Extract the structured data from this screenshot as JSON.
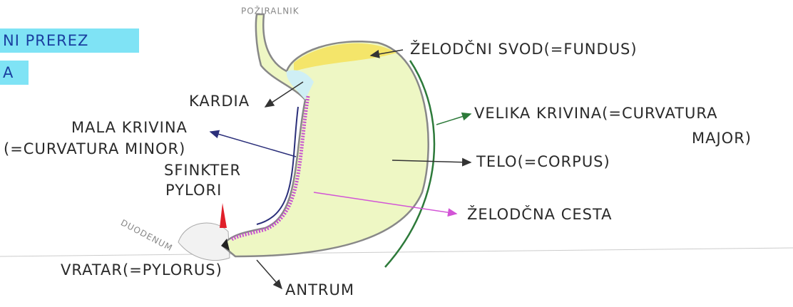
{
  "header": {
    "title_line1": "NI PREREZ",
    "title_line2": "A"
  },
  "labels": {
    "esophagus": "POŽIRALNIK",
    "fundus": "ŽELODČNI SVOD(=FUNDUS)",
    "cardia": "KARDIA",
    "lesser_curvature_1": "MALA KRIVINA",
    "lesser_curvature_2": "(=CURVATURA MINOR)",
    "sphincter_1": "SFINKTER",
    "sphincter_2": "PYLORI",
    "greater_curvature_1": "VELIKA KRIVINA(=CURVATURA",
    "greater_curvature_2": "MAJOR)",
    "body": "TELO(=CORPUS)",
    "gastric_canal": "ŽELODČNA CESTA",
    "duodenum": "DUODENUM",
    "pylorus": "VRATAR(=PYLORUS)",
    "antrum": "ANTRUM"
  }
}
